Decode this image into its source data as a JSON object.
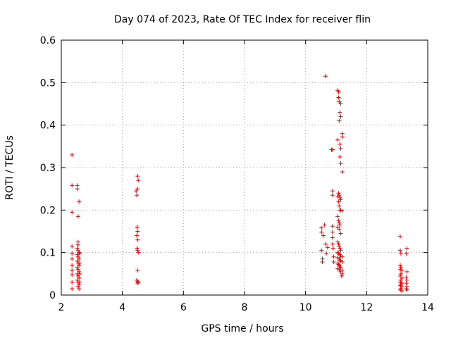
{
  "chart_data": {
    "type": "scatter",
    "title": "Day 074 of 2023, Rate Of TEC Index for receiver flin",
    "xlabel": "GPS time / hours",
    "ylabel": "ROTI / TECUs",
    "xlim": [
      2,
      14
    ],
    "ylim": [
      0,
      0.6
    ],
    "xticks": [
      "2",
      "4",
      "6",
      "8",
      "10",
      "12",
      "14"
    ],
    "yticks": [
      "0",
      "0.1",
      "0.2",
      "0.3",
      "0.4",
      "0.5",
      "0.6"
    ],
    "grid": true,
    "marker": "+",
    "marker_color": "#ff0000",
    "points": [
      [
        2.35,
        0.33
      ],
      [
        2.35,
        0.258
      ],
      [
        2.35,
        0.195
      ],
      [
        2.35,
        0.115
      ],
      [
        2.35,
        0.098
      ],
      [
        2.35,
        0.085
      ],
      [
        2.35,
        0.07
      ],
      [
        2.35,
        0.058
      ],
      [
        2.35,
        0.048
      ],
      [
        2.35,
        0.03
      ],
      [
        2.35,
        0.015
      ],
      [
        2.52,
        0.258
      ],
      [
        2.52,
        0.25
      ],
      [
        2.55,
        0.185
      ],
      [
        2.58,
        0.22
      ],
      [
        2.55,
        0.125
      ],
      [
        2.55,
        0.118
      ],
      [
        2.52,
        0.11
      ],
      [
        2.55,
        0.105
      ],
      [
        2.58,
        0.1
      ],
      [
        2.52,
        0.095
      ],
      [
        2.55,
        0.09
      ],
      [
        2.58,
        0.085
      ],
      [
        2.52,
        0.08
      ],
      [
        2.55,
        0.075
      ],
      [
        2.58,
        0.07
      ],
      [
        2.52,
        0.065
      ],
      [
        2.55,
        0.06
      ],
      [
        2.58,
        0.055
      ],
      [
        2.52,
        0.05
      ],
      [
        2.55,
        0.045
      ],
      [
        2.58,
        0.04
      ],
      [
        2.52,
        0.035
      ],
      [
        2.55,
        0.03
      ],
      [
        2.58,
        0.025
      ],
      [
        2.55,
        0.02
      ],
      [
        2.58,
        0.015
      ],
      [
        2.6,
        0.098
      ],
      [
        2.6,
        0.075
      ],
      [
        2.6,
        0.05
      ],
      [
        2.6,
        0.03
      ],
      [
        4.45,
        0.245
      ],
      [
        4.47,
        0.235
      ],
      [
        4.5,
        0.28
      ],
      [
        4.52,
        0.27
      ],
      [
        4.5,
        0.25
      ],
      [
        4.48,
        0.16
      ],
      [
        4.5,
        0.15
      ],
      [
        4.47,
        0.14
      ],
      [
        4.5,
        0.13
      ],
      [
        4.48,
        0.11
      ],
      [
        4.5,
        0.105
      ],
      [
        4.52,
        0.1
      ],
      [
        4.5,
        0.058
      ],
      [
        4.47,
        0.035
      ],
      [
        4.5,
        0.032
      ],
      [
        4.52,
        0.03
      ],
      [
        4.5,
        0.028
      ],
      [
        10.52,
        0.158
      ],
      [
        10.52,
        0.148
      ],
      [
        10.52,
        0.105
      ],
      [
        10.55,
        0.085
      ],
      [
        10.55,
        0.078
      ],
      [
        10.58,
        0.14
      ],
      [
        10.62,
        0.165
      ],
      [
        10.65,
        0.515
      ],
      [
        10.65,
        0.12
      ],
      [
        10.68,
        0.098
      ],
      [
        10.72,
        0.112
      ],
      [
        10.85,
        0.342
      ],
      [
        10.88,
        0.342
      ],
      [
        10.88,
        0.245
      ],
      [
        10.88,
        0.235
      ],
      [
        10.88,
        0.162
      ],
      [
        10.88,
        0.148
      ],
      [
        10.88,
        0.135
      ],
      [
        10.88,
        0.12
      ],
      [
        10.9,
        0.11
      ],
      [
        10.92,
        0.09
      ],
      [
        10.92,
        0.078
      ],
      [
        11.05,
        0.482
      ],
      [
        11.08,
        0.478
      ],
      [
        11.08,
        0.465
      ],
      [
        11.1,
        0.455
      ],
      [
        11.15,
        0.45
      ],
      [
        11.12,
        0.43
      ],
      [
        11.1,
        0.41
      ],
      [
        11.15,
        0.42
      ],
      [
        11.2,
        0.38
      ],
      [
        11.2,
        0.372
      ],
      [
        11.05,
        0.365
      ],
      [
        11.12,
        0.355
      ],
      [
        11.15,
        0.345
      ],
      [
        11.12,
        0.325
      ],
      [
        11.15,
        0.31
      ],
      [
        11.2,
        0.29
      ],
      [
        11.08,
        0.24
      ],
      [
        11.1,
        0.235
      ],
      [
        11.05,
        0.232
      ],
      [
        11.12,
        0.23
      ],
      [
        11.15,
        0.225
      ],
      [
        11.08,
        0.22
      ],
      [
        11.1,
        0.21
      ],
      [
        11.12,
        0.2
      ],
      [
        11.15,
        0.2
      ],
      [
        11.2,
        0.198
      ],
      [
        11.05,
        0.185
      ],
      [
        11.08,
        0.175
      ],
      [
        11.1,
        0.17
      ],
      [
        11.12,
        0.165
      ],
      [
        11.05,
        0.16
      ],
      [
        11.1,
        0.155
      ],
      [
        11.15,
        0.145
      ],
      [
        11.05,
        0.125
      ],
      [
        11.08,
        0.12
      ],
      [
        11.1,
        0.115
      ],
      [
        11.12,
        0.11
      ],
      [
        11.15,
        0.105
      ],
      [
        11.05,
        0.1
      ],
      [
        11.08,
        0.098
      ],
      [
        11.12,
        0.095
      ],
      [
        11.15,
        0.092
      ],
      [
        11.2,
        0.09
      ],
      [
        11.05,
        0.088
      ],
      [
        11.1,
        0.085
      ],
      [
        11.12,
        0.082
      ],
      [
        11.15,
        0.08
      ],
      [
        11.2,
        0.078
      ],
      [
        11.05,
        0.075
      ],
      [
        11.08,
        0.072
      ],
      [
        11.1,
        0.07
      ],
      [
        11.12,
        0.068
      ],
      [
        11.15,
        0.065
      ],
      [
        11.05,
        0.062
      ],
      [
        11.1,
        0.06
      ],
      [
        11.2,
        0.058
      ],
      [
        11.15,
        0.055
      ],
      [
        11.2,
        0.05
      ],
      [
        11.18,
        0.045
      ],
      [
        13.1,
        0.138
      ],
      [
        13.1,
        0.105
      ],
      [
        13.12,
        0.098
      ],
      [
        13.1,
        0.07
      ],
      [
        13.12,
        0.065
      ],
      [
        13.1,
        0.06
      ],
      [
        13.15,
        0.058
      ],
      [
        13.12,
        0.05
      ],
      [
        13.1,
        0.045
      ],
      [
        13.15,
        0.04
      ],
      [
        13.12,
        0.035
      ],
      [
        13.1,
        0.03
      ],
      [
        13.15,
        0.028
      ],
      [
        13.12,
        0.025
      ],
      [
        13.1,
        0.022
      ],
      [
        13.15,
        0.02
      ],
      [
        13.12,
        0.015
      ],
      [
        13.1,
        0.012
      ],
      [
        13.15,
        0.01
      ],
      [
        13.32,
        0.11
      ],
      [
        13.3,
        0.098
      ],
      [
        13.32,
        0.055
      ],
      [
        13.3,
        0.042
      ],
      [
        13.32,
        0.035
      ],
      [
        13.3,
        0.028
      ],
      [
        13.32,
        0.02
      ],
      [
        13.3,
        0.015
      ],
      [
        13.32,
        0.012
      ]
    ]
  }
}
